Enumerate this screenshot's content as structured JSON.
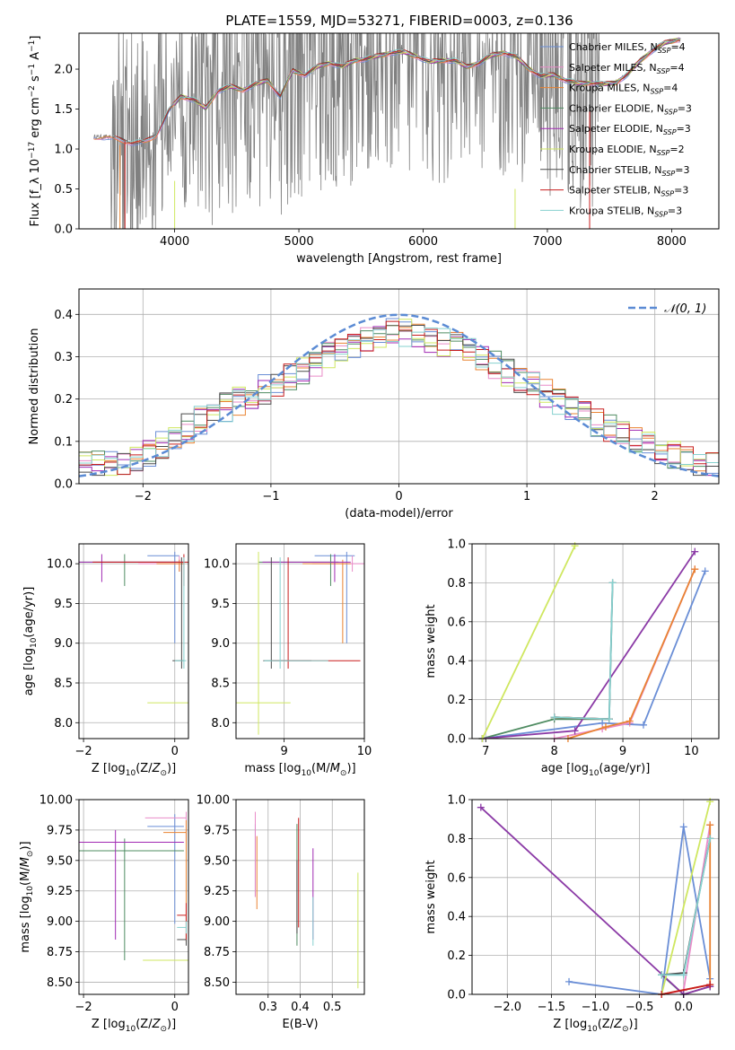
{
  "figure": {
    "title": "PLATE=1559, MJD=53271, FIBERID=0003, z=0.136"
  },
  "colors": {
    "Chabrier MILES": "#6a8ed6",
    "Salpeter MILES": "#e98bc8",
    "Kroupa MILES": "#e98332",
    "Chabrier ELODIE": "#4f8c62",
    "Salpeter ELODIE": "#a12ab3",
    "Kroupa ELODIE": "#cfe760",
    "Chabrier STELIB": "#4a4a4a",
    "Salpeter STELIB": "#c81c1c",
    "Kroupa STELIB": "#86d1cf",
    "data": "#808080",
    "normal": "#5b8bd4",
    "mw_purple": "#8b3aa6"
  },
  "chart_data": [
    {
      "id": "spectrum",
      "type": "line",
      "title": "PLATE=1559, MJD=53271, FIBERID=0003, z=0.136",
      "xlabel": "wavelength [Angstrom, rest frame]",
      "ylabel": "Flux [f_λ 10^-17 erg cm^-2 s^-1 A^-1]",
      "xlim": [
        3230,
        8380
      ],
      "ylim": [
        0.0,
        2.45
      ],
      "xticks": [
        4000,
        5000,
        6000,
        7000,
        8000
      ],
      "yticks": [
        0.0,
        0.5,
        1.0,
        1.5,
        2.0
      ],
      "grid": false,
      "legend_position": "top-right",
      "legend": [
        {
          "name": "Chabrier MILES",
          "nssp": "4"
        },
        {
          "name": "Salpeter MILES",
          "nssp": "4"
        },
        {
          "name": "Kroupa MILES",
          "nssp": "4"
        },
        {
          "name": "Chabrier ELODIE",
          "nssp": "3"
        },
        {
          "name": "Salpeter ELODIE",
          "nssp": "3"
        },
        {
          "name": "Kroupa ELODIE",
          "nssp": "2"
        },
        {
          "name": "Chabrier STELIB",
          "nssp": "3"
        },
        {
          "name": "Salpeter STELIB",
          "nssp": "3"
        },
        {
          "name": "Kroupa STELIB",
          "nssp": "3"
        }
      ],
      "continuum": {
        "x": [
          3350,
          3450,
          3550,
          3650,
          3750,
          3850,
          3950,
          4050,
          4150,
          4250,
          4350,
          4450,
          4550,
          4650,
          4750,
          4850,
          4950,
          5050,
          5150,
          5250,
          5350,
          5450,
          5550,
          5650,
          5750,
          5850,
          5950,
          6050,
          6150,
          6250,
          6350,
          6450,
          6550,
          6650,
          6750,
          6850,
          6950,
          7050,
          7150,
          7250,
          7350,
          7450,
          7550,
          7650,
          7750,
          7850,
          7950,
          8050
        ],
        "y": [
          1.15,
          1.15,
          1.12,
          1.08,
          1.08,
          1.17,
          1.47,
          1.66,
          1.62,
          1.51,
          1.73,
          1.78,
          1.74,
          1.81,
          1.86,
          1.66,
          1.98,
          1.93,
          2.03,
          2.08,
          2.03,
          2.11,
          2.13,
          2.17,
          2.21,
          2.21,
          2.16,
          2.09,
          2.11,
          2.11,
          2.03,
          2.08,
          2.17,
          2.21,
          2.15,
          2.01,
          1.91,
          1.93,
          1.86,
          1.82,
          1.83,
          1.81,
          1.83,
          1.94,
          2.11,
          2.24,
          2.33,
          2.37
        ]
      }
    },
    {
      "id": "residuals",
      "type": "histogram",
      "xlabel": "(data-model)/error",
      "ylabel": "Normed distribution",
      "xlim": [
        -2.5,
        2.5
      ],
      "ylim": [
        0.0,
        0.46
      ],
      "xticks": [
        -2,
        -1,
        0,
        1,
        2
      ],
      "yticks": [
        0.0,
        0.1,
        0.2,
        0.3,
        0.4
      ],
      "grid": true,
      "legend_position": "top-right",
      "normal_label": "N(0,1)",
      "bin_width": 0.1,
      "approx_profile": {
        "x": [
          -2.5,
          -2.0,
          -1.5,
          -1.0,
          -0.5,
          0.0,
          0.5,
          1.0,
          1.5,
          2.0,
          2.5
        ],
        "y": [
          0.04,
          0.06,
          0.16,
          0.23,
          0.31,
          0.36,
          0.32,
          0.24,
          0.15,
          0.08,
          0.04
        ]
      }
    },
    {
      "id": "age-vs-Z",
      "type": "errorbar",
      "xlabel": "Z [log10(Z/Z☉)]",
      "ylabel": "age  [log10(age/yr)]",
      "xlim": [
        -2.1,
        0.3
      ],
      "ylim": [
        7.8,
        10.25
      ],
      "xticks": [
        -2,
        0
      ],
      "yticks": [
        8.0,
        8.5,
        9.0,
        9.5,
        10.0
      ],
      "grid": true,
      "points": [
        {
          "series": "Chabrier MILES",
          "x": 0.0,
          "y": 10.1,
          "xerr": [
            0.6,
            0.1
          ],
          "yerr": [
            1.1,
            0.05
          ]
        },
        {
          "series": "Salpeter MILES",
          "x": 0.1,
          "y": 10.0,
          "xerr": [
            0.9,
            0.1
          ],
          "yerr": [
            0.1,
            0.1
          ]
        },
        {
          "series": "Kroupa MILES",
          "x": 0.1,
          "y": 10.0,
          "xerr": [
            0.5,
            0.1
          ],
          "yerr": [
            0.1,
            0.05
          ]
        },
        {
          "series": "Chabrier ELODIE",
          "x": -1.1,
          "y": 10.02,
          "xerr": [
            1.0,
            1.2
          ],
          "yerr": [
            0.3,
            0.1
          ]
        },
        {
          "series": "Salpeter ELODIE",
          "x": -1.6,
          "y": 10.02,
          "xerr": [
            0.5,
            1.8
          ],
          "yerr": [
            0.25,
            0.1
          ]
        },
        {
          "series": "Kroupa ELODIE",
          "x": 0.3,
          "y": 8.25,
          "xerr": [
            0.9,
            0.0
          ],
          "yerr": [
            0.4,
            1.9
          ]
        },
        {
          "series": "Chabrier STELIB",
          "x": 0.15,
          "y": 8.78,
          "xerr": [
            0.2,
            0.05
          ],
          "yerr": [
            0.1,
            1.3
          ]
        },
        {
          "series": "Salpeter STELIB",
          "x": 0.2,
          "y": 10.02,
          "xerr": [
            2.0,
            0.1
          ],
          "yerr": [
            0.3,
            0.1
          ]
        },
        {
          "series": "Kroupa STELIB",
          "x": 0.2,
          "y": 8.78,
          "xerr": [
            0.2,
            0.05
          ],
          "yerr": [
            0.1,
            1.3
          ]
        }
      ]
    },
    {
      "id": "age-vs-mass",
      "type": "errorbar",
      "xlabel": "mass [log10(M/M☉)]",
      "ylabel": "",
      "xlim": [
        8.4,
        10.0
      ],
      "ylim": [
        7.8,
        10.25
      ],
      "xticks": [
        9,
        10
      ],
      "yticks": [
        8.0,
        8.5,
        9.0,
        9.5,
        10.0
      ],
      "grid": true,
      "points": [
        {
          "series": "Chabrier MILES",
          "x": 9.78,
          "y": 10.1,
          "xerr": [
            0.4,
            0.1
          ],
          "yerr": [
            1.1,
            0.05
          ]
        },
        {
          "series": "Salpeter MILES",
          "x": 9.85,
          "y": 10.0,
          "xerr": [
            0.5,
            0.15
          ],
          "yerr": [
            0.1,
            0.1
          ]
        },
        {
          "series": "Kroupa MILES",
          "x": 9.73,
          "y": 10.0,
          "xerr": [
            0.5,
            0.1
          ],
          "yerr": [
            1.0,
            0.05
          ]
        },
        {
          "series": "Chabrier ELODIE",
          "x": 9.58,
          "y": 10.02,
          "xerr": [
            0.9,
            0.1
          ],
          "yerr": [
            0.3,
            0.1
          ]
        },
        {
          "series": "Salpeter ELODIE",
          "x": 9.63,
          "y": 10.02,
          "xerr": [
            0.9,
            0.2
          ],
          "yerr": [
            0.25,
            0.1
          ]
        },
        {
          "series": "Kroupa ELODIE",
          "x": 8.68,
          "y": 8.25,
          "xerr": [
            0.3,
            0.4
          ],
          "yerr": [
            0.4,
            1.9
          ]
        },
        {
          "series": "Chabrier STELIB",
          "x": 8.84,
          "y": 8.78,
          "xerr": [
            0.1,
            0.5
          ],
          "yerr": [
            0.1,
            1.3
          ]
        },
        {
          "series": "Salpeter STELIB",
          "x": 9.05,
          "y": 8.78,
          "xerr": [
            0.2,
            0.9
          ],
          "yerr": [
            0.1,
            1.3
          ]
        },
        {
          "series": "Kroupa STELIB",
          "x": 8.95,
          "y": 8.78,
          "xerr": [
            0.2,
            0.6
          ],
          "yerr": [
            0.1,
            1.3
          ]
        }
      ]
    },
    {
      "id": "mass-weight-vs-age",
      "type": "line",
      "xlabel": "age  [log10(age/yr)]",
      "ylabel": "mass weight",
      "xlim": [
        6.8,
        10.4
      ],
      "ylim": [
        0.0,
        1.0
      ],
      "xticks": [
        7,
        8,
        9,
        10
      ],
      "yticks": [
        0.0,
        0.2,
        0.4,
        0.6,
        0.8,
        1.0
      ],
      "grid": true,
      "series": [
        {
          "name": "Chabrier MILES",
          "x": [
            6.95,
            8.7,
            9.3,
            10.2
          ],
          "y": [
            0.0,
            0.08,
            0.07,
            0.86
          ]
        },
        {
          "name": "Salpeter MILES",
          "x": [
            8.0,
            8.7,
            9.1,
            10.05
          ],
          "y": [
            0.0,
            0.05,
            0.08,
            0.87
          ]
        },
        {
          "name": "Kroupa MILES",
          "x": [
            8.2,
            8.75,
            9.1,
            10.05
          ],
          "y": [
            0.0,
            0.06,
            0.09,
            0.87
          ]
        },
        {
          "name": "Chabrier ELODIE",
          "x": [
            6.95,
            8.0,
            8.8
          ],
          "y": [
            0.0,
            0.1,
            0.1
          ]
        },
        {
          "name": "Salpeter ELODIE",
          "x": [
            6.95,
            8.3,
            10.05
          ],
          "y": [
            0.0,
            0.04,
            0.96
          ]
        },
        {
          "name": "Kroupa ELODIE",
          "x": [
            6.95,
            8.3
          ],
          "y": [
            0.0,
            0.99
          ]
        },
        {
          "name": "Chabrier STELIB",
          "x": [
            8.0,
            8.8,
            8.85
          ],
          "y": [
            0.11,
            0.1,
            0.8
          ]
        },
        {
          "name": "Salpeter STELIB",
          "x": [
            8.0,
            8.8
          ],
          "y": [
            0.11,
            0.1
          ]
        },
        {
          "name": "Kroupa STELIB",
          "x": [
            8.0,
            8.8,
            8.85
          ],
          "y": [
            0.11,
            0.1,
            0.8
          ]
        }
      ]
    },
    {
      "id": "mass-vs-Z",
      "type": "errorbar",
      "xlabel": "Z [log10(Z/Z☉)]",
      "ylabel": "mass [log10(M/M☉)]",
      "xlim": [
        -2.1,
        0.3
      ],
      "ylim": [
        8.4,
        10.0
      ],
      "xticks": [
        -2,
        0
      ],
      "yticks": [
        8.5,
        8.75,
        9.0,
        9.25,
        9.5,
        9.75,
        10.0
      ],
      "grid": true,
      "points": [
        {
          "series": "Chabrier MILES",
          "x": 0.0,
          "y": 9.78,
          "xerr": [
            0.6,
            0.2
          ],
          "yerr": [
            0.8,
            0.1
          ]
        },
        {
          "series": "Salpeter MILES",
          "x": 0.25,
          "y": 9.85,
          "xerr": [
            0.9,
            0.0
          ],
          "yerr": [
            0.2,
            0.05
          ]
        },
        {
          "series": "Kroupa MILES",
          "x": 0.25,
          "y": 9.73,
          "xerr": [
            0.5,
            0.0
          ],
          "yerr": [
            0.9,
            0.1
          ]
        },
        {
          "series": "Chabrier ELODIE",
          "x": -1.1,
          "y": 9.58,
          "xerr": [
            1.0,
            1.3
          ],
          "yerr": [
            0.9,
            0.1
          ]
        },
        {
          "series": "Salpeter ELODIE",
          "x": -1.3,
          "y": 9.65,
          "xerr": [
            0.8,
            1.5
          ],
          "yerr": [
            0.8,
            0.1
          ]
        },
        {
          "series": "Kroupa ELODIE",
          "x": 0.3,
          "y": 8.68,
          "xerr": [
            1.0,
            0.0
          ],
          "yerr": [
            0.3,
            0.4
          ]
        },
        {
          "series": "Chabrier STELIB",
          "x": 0.25,
          "y": 8.85,
          "xerr": [
            0.2,
            0.0
          ],
          "yerr": [
            0.05,
            0.05
          ]
        },
        {
          "series": "Salpeter STELIB",
          "x": 0.25,
          "y": 9.05,
          "xerr": [
            0.2,
            0.0
          ],
          "yerr": [
            0.2,
            0.1
          ]
        },
        {
          "series": "Kroupa STELIB",
          "x": 0.25,
          "y": 8.95,
          "xerr": [
            0.2,
            0.0
          ],
          "yerr": [
            0.05,
            0.05
          ]
        }
      ]
    },
    {
      "id": "mass-vs-EBV",
      "type": "errorbar",
      "xlabel": "E(B-V)",
      "ylabel": "",
      "xlim": [
        0.2,
        0.6
      ],
      "ylim": [
        8.4,
        10.0
      ],
      "xticks": [
        0.3,
        0.4,
        0.5
      ],
      "yticks": [
        8.5,
        8.75,
        9.0,
        9.25,
        9.5,
        9.75,
        10.0
      ],
      "grid": true,
      "points": [
        {
          "series": "Chabrier MILES",
          "x": 0.26,
          "y": 9.5,
          "xerr": [
            0,
            0
          ],
          "yerr": [
            0.3,
            0.3
          ]
        },
        {
          "series": "Salpeter MILES",
          "x": 0.26,
          "y": 9.6,
          "xerr": [
            0,
            0
          ],
          "yerr": [
            0.4,
            0.3
          ]
        },
        {
          "series": "Kroupa MILES",
          "x": 0.265,
          "y": 9.4,
          "xerr": [
            0,
            0
          ],
          "yerr": [
            0.3,
            0.3
          ]
        },
        {
          "series": "Chabrier ELODIE",
          "x": 0.39,
          "y": 9.3,
          "xerr": [
            0,
            0
          ],
          "yerr": [
            0.5,
            0.5
          ]
        },
        {
          "series": "Salpeter ELODIE",
          "x": 0.44,
          "y": 9.2,
          "xerr": [
            0,
            0
          ],
          "yerr": [
            0.35,
            0.4
          ]
        },
        {
          "series": "Kroupa ELODIE",
          "x": 0.58,
          "y": 8.9,
          "xerr": [
            0,
            0
          ],
          "yerr": [
            0.45,
            0.5
          ]
        },
        {
          "series": "Chabrier STELIB",
          "x": 0.39,
          "y": 9.2,
          "xerr": [
            0,
            0
          ],
          "yerr": [
            0.3,
            0.3
          ]
        },
        {
          "series": "Salpeter STELIB",
          "x": 0.395,
          "y": 9.35,
          "xerr": [
            0,
            0
          ],
          "yerr": [
            0.4,
            0.5
          ]
        },
        {
          "series": "Kroupa STELIB",
          "x": 0.44,
          "y": 9.0,
          "xerr": [
            0,
            0
          ],
          "yerr": [
            0.2,
            0.2
          ]
        }
      ]
    },
    {
      "id": "mass-weight-vs-Z",
      "type": "line",
      "xlabel": "Z [log10(Z/Z☉)]",
      "ylabel": "mass weight",
      "xlim": [
        -2.4,
        0.4
      ],
      "ylim": [
        0.0,
        1.0
      ],
      "xticks": [
        -2.0,
        -1.5,
        -1.0,
        -0.5,
        0.0
      ],
      "yticks": [
        0.0,
        0.2,
        0.4,
        0.6,
        0.8,
        1.0
      ],
      "grid": true,
      "series": [
        {
          "name": "Chabrier MILES",
          "x": [
            -1.3,
            -0.25,
            0.0,
            0.3
          ],
          "y": [
            0.065,
            0.0,
            0.86,
            0.08
          ]
        },
        {
          "name": "Salpeter MILES",
          "x": [
            -0.25,
            0.0,
            0.3
          ],
          "y": [
            0.0,
            0.02,
            0.87
          ]
        },
        {
          "name": "Kroupa MILES",
          "x": [
            -0.25,
            0.3,
            0.3
          ],
          "y": [
            0.0,
            0.05,
            0.87
          ]
        },
        {
          "name": "Chabrier ELODIE",
          "x": [
            -0.25,
            0.0,
            0.3
          ],
          "y": [
            0.1,
            0.0,
            0.04
          ]
        },
        {
          "name": "Salpeter ELODIE",
          "x": [
            -2.3,
            0.0,
            0.3
          ],
          "y": [
            0.96,
            0.0,
            0.04
          ]
        },
        {
          "name": "Kroupa ELODIE",
          "x": [
            -0.25,
            0.3
          ],
          "y": [
            0.0,
            0.99
          ]
        },
        {
          "name": "Chabrier STELIB",
          "x": [
            -0.25,
            0.0,
            0.3
          ],
          "y": [
            0.1,
            0.11,
            0.8
          ]
        },
        {
          "name": "Salpeter STELIB",
          "x": [
            -0.25,
            0.3
          ],
          "y": [
            0.0,
            0.05
          ]
        },
        {
          "name": "Kroupa STELIB",
          "x": [
            -0.25,
            0.0,
            0.3
          ],
          "y": [
            0.1,
            0.1,
            0.8
          ]
        }
      ]
    }
  ]
}
